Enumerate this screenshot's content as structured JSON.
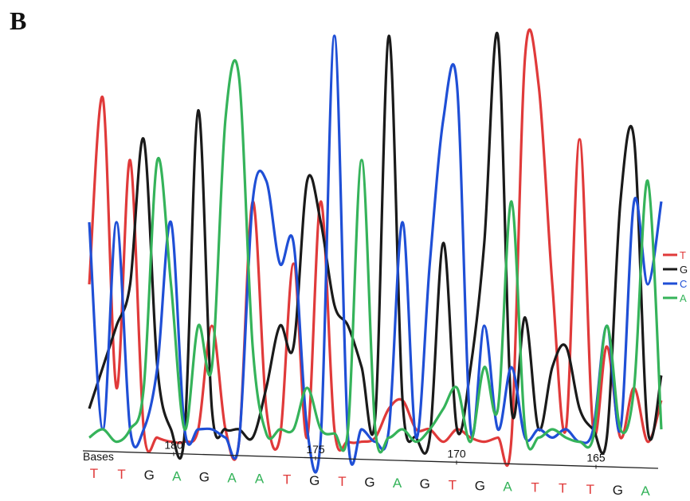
{
  "panel_label": "B",
  "chart_data": {
    "type": "line",
    "title": "",
    "axis_label": "Bases",
    "tick_labels": [
      "180",
      "175",
      "170",
      "165"
    ],
    "base_calls": [
      "T",
      "T",
      "G",
      "A",
      "G",
      "A",
      "A",
      "T",
      "G",
      "T",
      "G",
      "A",
      "G",
      "T",
      "G",
      "A",
      "T",
      "T",
      "T",
      "G",
      "A"
    ],
    "legend": [
      "T",
      "G",
      "C",
      "A"
    ],
    "colors": {
      "T": "#e03a3a",
      "G": "#1a1a1a",
      "C": "#1f4fd6",
      "A": "#35b35a"
    },
    "y_range": [
      0,
      100
    ],
    "series": [
      {
        "name": "T",
        "values": [
          40,
          85,
          15,
          70,
          5,
          3,
          2,
          2,
          5,
          30,
          5,
          2,
          60,
          10,
          3,
          45,
          3,
          60,
          5,
          2,
          2,
          3,
          10,
          12,
          5,
          5,
          2,
          5,
          3,
          2,
          3,
          3,
          95,
          88,
          40,
          5,
          75,
          5,
          25,
          3,
          15,
          2,
          12
        ]
      },
      {
        "name": "G",
        "values": [
          10,
          20,
          30,
          40,
          75,
          20,
          5,
          4,
          82,
          10,
          5,
          5,
          3,
          15,
          30,
          25,
          65,
          55,
          35,
          30,
          20,
          8,
          100,
          12,
          3,
          3,
          50,
          5,
          20,
          50,
          100,
          10,
          32,
          5,
          20,
          25,
          10,
          5,
          3,
          60,
          75,
          5,
          18
        ]
      },
      {
        "name": "C",
        "values": [
          55,
          5,
          55,
          5,
          5,
          20,
          55,
          5,
          5,
          5,
          3,
          2,
          60,
          65,
          45,
          50,
          5,
          3,
          100,
          3,
          5,
          2,
          5,
          55,
          3,
          45,
          80,
          88,
          5,
          30,
          5,
          20,
          3,
          5,
          3,
          5,
          2,
          5,
          30,
          5,
          60,
          40,
          60
        ]
      },
      {
        "name": "A",
        "values": [
          3,
          5,
          2,
          5,
          15,
          70,
          40,
          5,
          30,
          20,
          80,
          90,
          25,
          4,
          5,
          5,
          15,
          5,
          4,
          5,
          70,
          5,
          3,
          5,
          2,
          5,
          10,
          15,
          2,
          20,
          10,
          60,
          5,
          3,
          5,
          3,
          2,
          3,
          30,
          5,
          15,
          65,
          5
        ]
      }
    ]
  }
}
